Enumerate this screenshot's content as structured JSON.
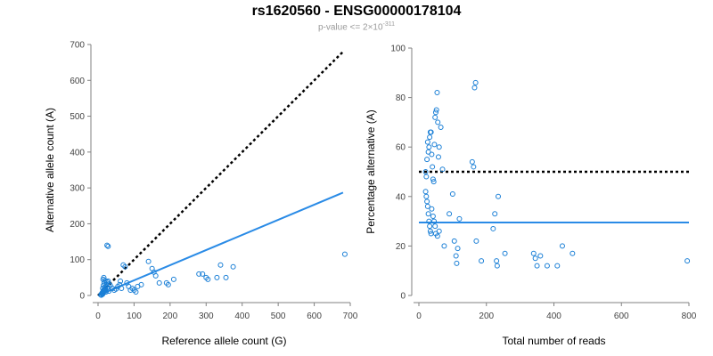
{
  "header": {
    "title": "rs1620560 - ENSG00000178104",
    "subtitle_prefix": "p-value <= 2×10",
    "subtitle_exp": "-311"
  },
  "colors": {
    "points": "#1a7fd6",
    "fit_line": "#2a8be6",
    "reference_line": "#000000",
    "axis": "#808080"
  },
  "chart_data": [
    {
      "type": "scatter",
      "xlabel": "Reference allele count (G)",
      "ylabel": "Alternative allele count (A)",
      "xlim": [
        0,
        700
      ],
      "ylim": [
        0,
        700
      ],
      "x_ticks": [
        0,
        100,
        200,
        300,
        400,
        500,
        600,
        700
      ],
      "y_ticks": [
        0,
        100,
        200,
        300,
        400,
        500,
        600,
        700
      ],
      "points": [
        [
          8,
          2
        ],
        [
          10,
          5
        ],
        [
          12,
          8
        ],
        [
          14,
          10
        ],
        [
          15,
          12
        ],
        [
          16,
          15
        ],
        [
          18,
          18
        ],
        [
          20,
          20
        ],
        [
          22,
          10
        ],
        [
          12,
          3
        ],
        [
          9,
          1
        ],
        [
          11,
          6
        ],
        [
          13,
          4
        ],
        [
          17,
          9
        ],
        [
          19,
          14
        ],
        [
          21,
          25
        ],
        [
          24,
          30
        ],
        [
          26,
          22
        ],
        [
          28,
          18
        ],
        [
          30,
          12
        ],
        [
          13,
          20
        ],
        [
          15,
          28
        ],
        [
          17,
          35
        ],
        [
          19,
          42
        ],
        [
          14,
          45
        ],
        [
          16,
          50
        ],
        [
          25,
          38
        ],
        [
          30,
          32
        ],
        [
          34,
          28
        ],
        [
          28,
          40
        ],
        [
          25,
          140
        ],
        [
          28,
          137
        ],
        [
          40,
          20
        ],
        [
          45,
          15
        ],
        [
          50,
          18
        ],
        [
          55,
          25
        ],
        [
          60,
          30
        ],
        [
          62,
          40
        ],
        [
          65,
          20
        ],
        [
          70,
          85
        ],
        [
          75,
          80
        ],
        [
          80,
          35
        ],
        [
          85,
          25
        ],
        [
          90,
          15
        ],
        [
          95,
          20
        ],
        [
          100,
          15
        ],
        [
          105,
          10
        ],
        [
          110,
          25
        ],
        [
          120,
          30
        ],
        [
          140,
          95
        ],
        [
          150,
          75
        ],
        [
          155,
          65
        ],
        [
          160,
          55
        ],
        [
          170,
          35
        ],
        [
          190,
          35
        ],
        [
          195,
          30
        ],
        [
          210,
          45
        ],
        [
          280,
          60
        ],
        [
          290,
          60
        ],
        [
          300,
          50
        ],
        [
          305,
          45
        ],
        [
          330,
          50
        ],
        [
          340,
          85
        ],
        [
          355,
          50
        ],
        [
          375,
          80
        ],
        [
          685,
          115
        ]
      ],
      "fit_line": {
        "x": [
          0,
          680
        ],
        "y": [
          0,
          287
        ]
      },
      "reference_line": {
        "x": [
          0,
          680
        ],
        "y": [
          0,
          680
        ]
      }
    },
    {
      "type": "scatter",
      "xlabel": "Total number of reads",
      "ylabel": "Percentage alternative (A)",
      "xlim": [
        0,
        800
      ],
      "ylim": [
        0,
        100
      ],
      "x_ticks": [
        0,
        200,
        400,
        600,
        800
      ],
      "y_ticks": [
        0,
        20,
        40,
        60,
        80,
        100
      ],
      "points": [
        [
          20,
          50
        ],
        [
          22,
          48
        ],
        [
          24,
          55
        ],
        [
          26,
          62
        ],
        [
          28,
          58
        ],
        [
          30,
          60
        ],
        [
          32,
          64
        ],
        [
          34,
          66
        ],
        [
          36,
          66
        ],
        [
          38,
          57
        ],
        [
          40,
          52
        ],
        [
          42,
          47
        ],
        [
          44,
          46
        ],
        [
          46,
          61
        ],
        [
          48,
          72
        ],
        [
          50,
          74
        ],
        [
          52,
          75
        ],
        [
          54,
          82
        ],
        [
          56,
          70
        ],
        [
          58,
          56
        ],
        [
          60,
          60
        ],
        [
          65,
          68
        ],
        [
          70,
          51
        ],
        [
          20,
          42
        ],
        [
          22,
          40
        ],
        [
          24,
          38
        ],
        [
          26,
          36
        ],
        [
          28,
          33
        ],
        [
          30,
          30
        ],
        [
          32,
          28
        ],
        [
          34,
          26
        ],
        [
          36,
          25
        ],
        [
          38,
          35
        ],
        [
          42,
          32
        ],
        [
          45,
          30
        ],
        [
          48,
          28
        ],
        [
          50,
          25
        ],
        [
          55,
          24
        ],
        [
          60,
          26
        ],
        [
          75,
          20
        ],
        [
          90,
          33
        ],
        [
          100,
          41
        ],
        [
          105,
          22
        ],
        [
          110,
          16
        ],
        [
          112,
          13
        ],
        [
          115,
          19
        ],
        [
          120,
          31
        ],
        [
          158,
          54
        ],
        [
          162,
          52
        ],
        [
          165,
          84
        ],
        [
          168,
          86
        ],
        [
          170,
          22
        ],
        [
          185,
          14
        ],
        [
          220,
          27
        ],
        [
          225,
          33
        ],
        [
          230,
          14
        ],
        [
          232,
          12
        ],
        [
          235,
          40
        ],
        [
          255,
          17
        ],
        [
          340,
          17
        ],
        [
          345,
          15
        ],
        [
          350,
          12
        ],
        [
          360,
          16
        ],
        [
          380,
          12
        ],
        [
          410,
          12
        ],
        [
          425,
          20
        ],
        [
          455,
          17
        ],
        [
          795,
          14
        ]
      ],
      "fit_line": {
        "y": 29.5
      },
      "reference_line": {
        "y": 50
      }
    }
  ]
}
